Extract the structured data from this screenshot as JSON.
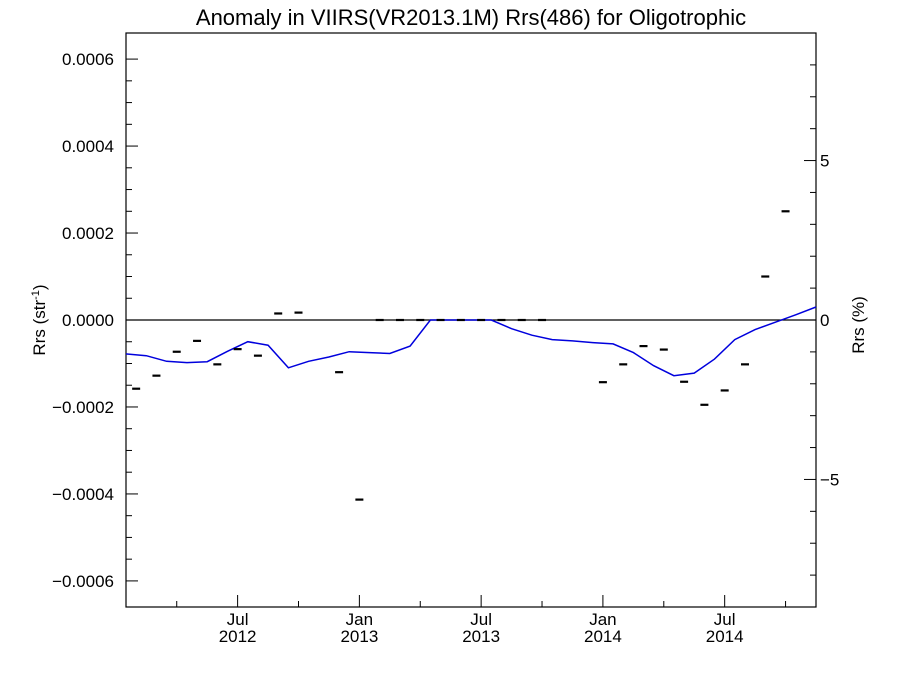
{
  "chart_data": {
    "type": "line",
    "title": "Anomaly in VIIRS(VR2013.1M) Rrs(486) for Oligotrophic",
    "ylabel": "Rrs (str",
    "ylabel_sup": "-1",
    "ylabel_close": ")",
    "y2label": "Rrs (%)",
    "xlim": [
      2012.0,
      2014.8333
    ],
    "ylim": [
      -0.00066,
      0.00066
    ],
    "y2lim": [
      -9.0,
      9.0
    ],
    "yticks": [
      {
        "value": 0.0006,
        "label": "0.0006"
      },
      {
        "value": 0.0004,
        "label": "0.0004"
      },
      {
        "value": 0.0002,
        "label": "0.0002"
      },
      {
        "value": 0.0,
        "label": "0.0000"
      },
      {
        "value": -0.0002,
        "label": "−0.0002"
      },
      {
        "value": -0.0004,
        "label": "−0.0004"
      },
      {
        "value": -0.0006,
        "label": "−0.0006"
      }
    ],
    "y2ticks": [
      {
        "value": 5,
        "label": "5"
      },
      {
        "value": 0,
        "label": "0"
      },
      {
        "value": -5,
        "label": "−5"
      }
    ],
    "xticks": [
      {
        "value": 2012.4583,
        "line1": "Jul",
        "line2": "2012"
      },
      {
        "value": 2012.9583,
        "line1": "Jan",
        "line2": "2013"
      },
      {
        "value": 2013.4583,
        "line1": "Jul",
        "line2": "2013"
      },
      {
        "value": 2013.9583,
        "line1": "Jan",
        "line2": "2014"
      },
      {
        "value": 2014.4583,
        "line1": "Jul",
        "line2": "2014"
      }
    ],
    "series": [
      {
        "kind": "line",
        "color": "#0000dd",
        "x": [
          2012.0,
          2012.0833,
          2012.1667,
          2012.25,
          2012.3333,
          2012.4167,
          2012.5,
          2012.5833,
          2012.6667,
          2012.75,
          2012.8333,
          2012.9167,
          2013.0,
          2013.0833,
          2013.1667,
          2013.25,
          2013.3333,
          2013.4167,
          2013.5,
          2013.5833,
          2013.6667,
          2013.75,
          2013.8333,
          2013.9167,
          2014.0,
          2014.0833,
          2014.1667,
          2014.25,
          2014.3333,
          2014.4167,
          2014.5,
          2014.5833,
          2014.6667,
          2014.75,
          2014.8333
        ],
        "y": [
          -7.8e-05,
          -8.2e-05,
          -9.5e-05,
          -9.8e-05,
          -9.6e-05,
          -7.2e-05,
          -5e-05,
          -5.8e-05,
          -0.00011,
          -9.5e-05,
          -8.5e-05,
          -7.3e-05,
          -7.5e-05,
          -7.7e-05,
          -6e-05,
          0.0,
          0.0,
          0.0,
          0.0,
          -2e-05,
          -3.5e-05,
          -4.5e-05,
          -4.8e-05,
          -5.2e-05,
          -5.5e-05,
          -7.5e-05,
          -0.000105,
          -0.000128,
          -0.000122,
          -9e-05,
          -4.5e-05,
          -2.2e-05,
          -5e-06,
          1.2e-05,
          3e-05
        ]
      },
      {
        "kind": "markers",
        "color": "#000000",
        "x": [
          2012.0417,
          2012.125,
          2012.2083,
          2012.2917,
          2012.375,
          2012.4583,
          2012.5417,
          2012.625,
          2012.7083,
          2012.875,
          2012.9583,
          2013.0417,
          2013.125,
          2013.2083,
          2013.2917,
          2013.375,
          2013.4583,
          2013.5417,
          2013.625,
          2013.7083,
          2013.9583,
          2014.0417,
          2014.125,
          2014.2083,
          2014.2917,
          2014.375,
          2014.4583,
          2014.5417,
          2014.625,
          2014.7083
        ],
        "y": [
          -0.000158,
          -0.000128,
          -7.3e-05,
          -4.8e-05,
          -0.000102,
          -6.7e-05,
          -8.2e-05,
          1.5e-05,
          1.7e-05,
          -0.00012,
          -0.000413,
          0.0,
          0.0,
          0.0,
          0.0,
          0.0,
          0.0,
          0.0,
          0.0,
          0.0,
          -0.000143,
          -0.000102,
          -6e-05,
          -6.8e-05,
          -0.000142,
          -0.000195,
          -0.000162,
          -0.000102,
          0.0001,
          0.00025
        ]
      }
    ],
    "zero_line": true,
    "grid": false
  }
}
